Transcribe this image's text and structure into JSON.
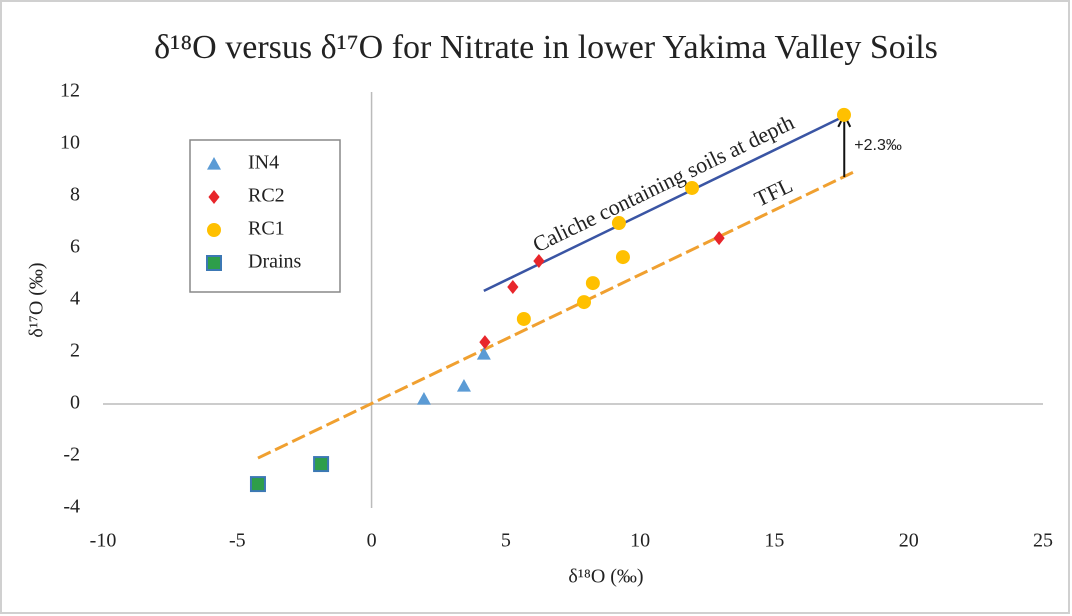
{
  "chart_data": {
    "type": "scatter",
    "title": "δ¹⁸O versus δ¹⁷O for Nitrate in lower Yakima Valley Soils",
    "x_label": "δ¹⁸O (‰)",
    "y_label": "δ¹⁷O (‰)",
    "xlim": [
      -10,
      25
    ],
    "ylim": [
      -4,
      12
    ],
    "xticks": [
      -10,
      -5,
      0,
      5,
      10,
      15,
      20,
      25
    ],
    "yticks": [
      -4,
      -2,
      0,
      2,
      4,
      6,
      8,
      10,
      12
    ],
    "series": [
      {
        "name": "IN4",
        "marker": "triangle",
        "color": "#5b9bd5",
        "x": [
          1.95,
          3.44,
          4.18
        ],
        "values": [
          0.19,
          0.69,
          1.92
        ]
      },
      {
        "name": "RC2",
        "marker": "diamond",
        "color": "#e8262b",
        "x": [
          4.22,
          5.26,
          6.23,
          12.94
        ],
        "values": [
          2.38,
          4.5,
          5.5,
          6.38
        ]
      },
      {
        "name": "RC1",
        "marker": "circle",
        "color": "#ffc000",
        "x": [
          5.67,
          7.91,
          8.24,
          9.21,
          9.36,
          11.93,
          17.59
        ],
        "values": [
          3.27,
          3.92,
          4.65,
          6.96,
          5.65,
          8.31,
          11.12
        ]
      },
      {
        "name": "Drains",
        "marker": "square",
        "color": "#2e9e4a",
        "x": [
          -4.23,
          -1.88
        ],
        "values": [
          -3.08,
          -2.31
        ]
      }
    ],
    "lines": [
      {
        "label": "TFL",
        "color": "#f0a030",
        "dashed": true,
        "x": [
          -4.23,
          18.07
        ],
        "y": [
          -2.08,
          8.98
        ]
      },
      {
        "label": "Caliche containing soils at depth",
        "color": "#3a55a4",
        "dashed": false,
        "x": [
          4.18,
          17.62
        ],
        "y": [
          4.35,
          11.08
        ]
      }
    ],
    "arrow": {
      "label": "+2.3‰",
      "x": 17.6,
      "y": [
        8.73,
        11.12
      ]
    }
  }
}
